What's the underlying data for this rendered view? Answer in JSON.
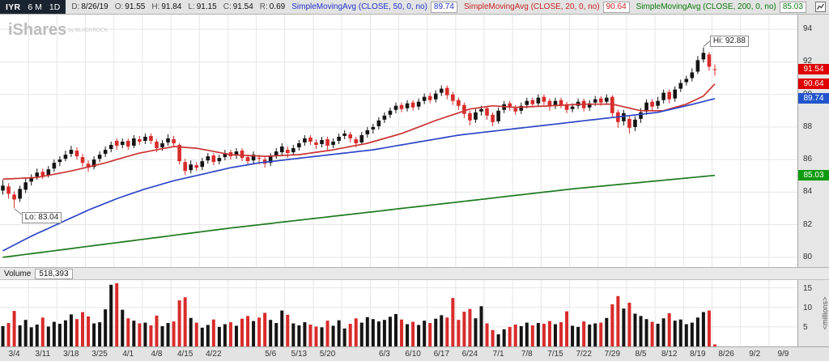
{
  "header": {
    "symbol_box": {
      "symbol": "IYR",
      "period": "6 M",
      "timeframe": "1D"
    },
    "quote_fields": [
      {
        "label": "D:",
        "value": "8/26/19"
      },
      {
        "label": "O:",
        "value": "91.55"
      },
      {
        "label": "H:",
        "value": "91.84"
      },
      {
        "label": "L:",
        "value": "91.15"
      },
      {
        "label": "C:",
        "value": "91.54"
      },
      {
        "label": "R:",
        "value": "0.69"
      }
    ],
    "indicators": [
      {
        "label": "SimpleMovingAvg (CLOSE, 50, 0, no)",
        "value": "89.74",
        "color": "#2233cc"
      },
      {
        "label": "SimpleMovingAvg (CLOSE, 20, 0, no)",
        "value": "90.64",
        "color": "#cc2222"
      },
      {
        "label": "SimpleMovingAvg (CLOSE, 200, 0, no)",
        "value": "85.03",
        "color": "#0b7a0b"
      }
    ]
  },
  "watermark": {
    "title": "iShares",
    "subtitle": "by BLACKROCK"
  },
  "annotations": {
    "high": {
      "text": "Hi: 92.88",
      "index": 123,
      "price": 92.88
    },
    "low": {
      "text": "Lo: 83.04",
      "index": 2,
      "price": 83.04
    }
  },
  "price_axis": {
    "ticks": [
      94,
      92,
      90,
      88,
      86,
      84,
      82,
      80
    ],
    "tags": [
      {
        "text": "91.54",
        "price": 91.54,
        "bg": "#e00000"
      },
      {
        "text": "90.64",
        "price": 90.64,
        "bg": "#e00000"
      },
      {
        "text": "89.74",
        "price": 89.74,
        "bg": "#2255cc"
      },
      {
        "text": "85.03",
        "price": 85.03,
        "bg": "#0f9b0f"
      }
    ]
  },
  "volume_pane": {
    "label": "Volume",
    "value": "518,393",
    "ticks": [
      15,
      10,
      5
    ],
    "axis_unit": "<millions>"
  },
  "chart_data": {
    "type": "candlestick",
    "symbol": "IYR",
    "range": "6 M",
    "interval": "1D",
    "ylim": [
      79.4,
      94.9
    ],
    "volume_ylim": [
      0,
      17
    ],
    "slots": 140,
    "price_gridlines": [
      80,
      82,
      84,
      86,
      88,
      90,
      92,
      94
    ],
    "up_color": "#141414",
    "down_color": "#d92b2b",
    "x_labels": [
      {
        "t": "3/4",
        "i": 0
      },
      {
        "t": "3/11",
        "i": 5
      },
      {
        "t": "3/18",
        "i": 10
      },
      {
        "t": "3/25",
        "i": 15
      },
      {
        "t": "4/1",
        "i": 20
      },
      {
        "t": "4/8",
        "i": 25
      },
      {
        "t": "4/15",
        "i": 30
      },
      {
        "t": "4/22",
        "i": 35
      },
      {
        "t": "5/6",
        "i": 45
      },
      {
        "t": "5/13",
        "i": 50
      },
      {
        "t": "5/20",
        "i": 55
      },
      {
        "t": "6/3",
        "i": 65
      },
      {
        "t": "6/10",
        "i": 70
      },
      {
        "t": "6/17",
        "i": 75
      },
      {
        "t": "6/24",
        "i": 80
      },
      {
        "t": "7/1",
        "i": 85
      },
      {
        "t": "7/8",
        "i": 90
      },
      {
        "t": "7/15",
        "i": 95
      },
      {
        "t": "7/22",
        "i": 100
      },
      {
        "t": "7/29",
        "i": 105
      },
      {
        "t": "8/5",
        "i": 110
      },
      {
        "t": "8/12",
        "i": 115
      },
      {
        "t": "8/19",
        "i": 120
      },
      {
        "t": "8/26",
        "i": 125
      },
      {
        "t": "9/2",
        "i": 130
      },
      {
        "t": "9/9",
        "i": 135
      }
    ],
    "candles": [
      [
        84.1,
        84.75,
        83.85,
        84.4,
        5.2
      ],
      [
        84.35,
        84.55,
        83.6,
        83.9,
        6.0
      ],
      [
        83.85,
        84.05,
        83.04,
        83.55,
        9.1
      ],
      [
        83.6,
        84.4,
        83.4,
        84.2,
        5.4
      ],
      [
        84.15,
        84.85,
        83.95,
        84.6,
        6.8
      ],
      [
        84.65,
        85.1,
        84.4,
        84.9,
        4.9
      ],
      [
        84.95,
        85.45,
        84.75,
        85.2,
        5.6
      ],
      [
        85.25,
        85.45,
        84.8,
        85.0,
        7.4
      ],
      [
        85.05,
        85.6,
        84.9,
        85.4,
        5.1
      ],
      [
        85.45,
        86.0,
        85.25,
        85.8,
        6.3
      ],
      [
        85.85,
        86.2,
        85.6,
        86.0,
        5.8
      ],
      [
        86.05,
        86.55,
        85.9,
        86.3,
        6.7
      ],
      [
        86.35,
        86.85,
        86.15,
        86.6,
        8.2
      ],
      [
        86.55,
        86.75,
        86.0,
        86.2,
        7.0
      ],
      [
        86.15,
        86.35,
        85.55,
        85.8,
        8.8
      ],
      [
        85.75,
        85.95,
        85.25,
        85.5,
        7.7
      ],
      [
        85.55,
        86.2,
        85.4,
        86.0,
        5.9
      ],
      [
        86.05,
        86.5,
        85.85,
        86.3,
        6.2
      ],
      [
        86.35,
        86.8,
        86.15,
        86.6,
        9.5
      ],
      [
        86.65,
        87.1,
        86.45,
        86.9,
        15.8
      ],
      [
        87.15,
        87.3,
        86.6,
        86.85,
        16.2
      ],
      [
        86.9,
        87.3,
        86.7,
        87.1,
        9.4
      ],
      [
        87.15,
        87.3,
        86.6,
        86.8,
        7.2
      ],
      [
        86.85,
        87.5,
        86.7,
        87.3,
        6.6
      ],
      [
        87.25,
        87.45,
        86.9,
        87.1,
        5.9
      ],
      [
        87.15,
        87.6,
        86.95,
        87.4,
        6.1
      ],
      [
        87.45,
        87.6,
        86.95,
        87.15,
        5.4
      ],
      [
        87.1,
        87.25,
        86.45,
        86.7,
        7.9
      ],
      [
        86.75,
        87.2,
        86.55,
        87.0,
        5.2
      ],
      [
        87.05,
        87.55,
        86.85,
        87.3,
        6.0
      ],
      [
        87.25,
        87.45,
        86.8,
        87.0,
        6.4
      ],
      [
        86.9,
        87.0,
        85.7,
        85.9,
        11.8
      ],
      [
        85.85,
        86.05,
        85.05,
        85.3,
        12.6
      ],
      [
        85.35,
        85.95,
        85.15,
        85.7,
        7.3
      ],
      [
        85.65,
        85.85,
        85.3,
        85.5,
        6.1
      ],
      [
        85.55,
        86.1,
        85.35,
        85.9,
        4.8
      ],
      [
        85.95,
        86.4,
        85.75,
        86.2,
        5.5
      ],
      [
        86.25,
        86.4,
        85.65,
        85.85,
        6.9
      ],
      [
        85.9,
        86.3,
        85.7,
        86.1,
        5.0
      ],
      [
        86.15,
        86.6,
        85.95,
        86.4,
        5.7
      ],
      [
        86.45,
        86.6,
        86.0,
        86.2,
        6.2
      ],
      [
        86.25,
        86.7,
        86.05,
        86.5,
        5.3
      ],
      [
        86.55,
        86.7,
        85.9,
        86.1,
        7.1
      ],
      [
        86.15,
        86.3,
        85.65,
        85.9,
        7.8
      ],
      [
        85.95,
        86.5,
        85.75,
        86.3,
        6.5
      ],
      [
        86.1,
        86.3,
        85.7,
        86.05,
        7.4
      ],
      [
        86.0,
        86.15,
        85.5,
        85.75,
        8.6
      ],
      [
        85.8,
        86.4,
        85.6,
        86.2,
        6.8
      ],
      [
        86.25,
        86.7,
        86.05,
        86.5,
        6.0
      ],
      [
        86.45,
        87.0,
        86.25,
        86.8,
        9.2
      ],
      [
        86.6,
        86.8,
        86.1,
        86.4,
        8.1
      ],
      [
        86.45,
        86.9,
        86.25,
        86.7,
        5.9
      ],
      [
        86.75,
        87.2,
        86.55,
        87.0,
        5.4
      ],
      [
        87.05,
        87.5,
        86.85,
        87.3,
        6.2
      ],
      [
        87.35,
        87.5,
        86.9,
        87.1,
        5.6
      ],
      [
        87.05,
        87.25,
        86.65,
        86.9,
        5.1
      ],
      [
        86.95,
        87.4,
        86.75,
        87.2,
        4.9
      ],
      [
        87.25,
        87.4,
        86.6,
        86.85,
        6.6
      ],
      [
        86.9,
        87.3,
        86.7,
        87.1,
        5.3
      ],
      [
        87.15,
        87.6,
        86.95,
        87.4,
        6.7
      ],
      [
        87.45,
        87.8,
        87.25,
        87.6,
        4.6
      ],
      [
        87.55,
        87.7,
        87.05,
        87.3,
        5.8
      ],
      [
        87.25,
        87.4,
        86.75,
        87.0,
        7.2
      ],
      [
        87.05,
        87.7,
        86.9,
        87.5,
        6.1
      ],
      [
        87.55,
        88.0,
        87.35,
        87.8,
        7.5
      ],
      [
        87.85,
        88.2,
        87.6,
        88.0,
        7.0
      ],
      [
        88.05,
        88.6,
        87.85,
        88.4,
        6.4
      ],
      [
        88.45,
        88.9,
        88.25,
        88.7,
        6.8
      ],
      [
        88.75,
        89.2,
        88.55,
        89.0,
        7.6
      ],
      [
        89.05,
        89.5,
        88.85,
        89.3,
        8.3
      ],
      [
        89.35,
        89.5,
        88.9,
        89.1,
        6.9
      ],
      [
        89.15,
        89.65,
        88.95,
        89.45,
        5.7
      ],
      [
        89.5,
        89.65,
        89.0,
        89.2,
        6.3
      ],
      [
        89.25,
        89.75,
        89.05,
        89.55,
        5.5
      ],
      [
        89.6,
        90.05,
        89.4,
        89.85,
        6.6
      ],
      [
        89.9,
        90.1,
        89.45,
        89.65,
        6.0
      ],
      [
        89.7,
        90.25,
        89.5,
        90.05,
        7.1
      ],
      [
        90.1,
        90.55,
        89.9,
        90.35,
        8.0
      ],
      [
        90.4,
        90.55,
        89.7,
        89.95,
        7.4
      ],
      [
        90.0,
        90.15,
        89.35,
        89.6,
        12.4
      ],
      [
        89.65,
        89.8,
        89.05,
        89.3,
        6.8
      ],
      [
        89.35,
        89.5,
        88.55,
        88.8,
        8.9
      ],
      [
        88.85,
        89.0,
        88.1,
        88.4,
        9.6
      ],
      [
        88.45,
        89.1,
        88.25,
        88.9,
        7.2
      ],
      [
        88.95,
        89.3,
        88.7,
        89.1,
        10.3
      ],
      [
        89.15,
        89.3,
        88.45,
        88.7,
        5.9
      ],
      [
        88.75,
        88.9,
        88.05,
        88.3,
        4.2
      ],
      [
        88.35,
        89.2,
        88.2,
        89.0,
        3.1
      ],
      [
        89.05,
        89.6,
        88.85,
        89.4,
        4.4
      ],
      [
        89.45,
        89.6,
        89.0,
        89.2,
        5.0
      ],
      [
        89.15,
        89.35,
        88.75,
        88.95,
        5.6
      ],
      [
        89.0,
        89.5,
        88.8,
        89.3,
        5.2
      ],
      [
        89.35,
        89.8,
        89.15,
        89.6,
        6.1
      ],
      [
        89.65,
        89.8,
        89.2,
        89.4,
        5.4
      ],
      [
        89.45,
        90.0,
        89.25,
        89.8,
        6.0
      ],
      [
        89.85,
        90.0,
        89.35,
        89.55,
        5.8
      ],
      [
        89.6,
        89.75,
        89.0,
        89.25,
        6.5
      ],
      [
        89.3,
        89.8,
        89.1,
        89.6,
        5.7
      ],
      [
        89.65,
        89.8,
        89.15,
        89.35,
        6.2
      ],
      [
        89.4,
        89.55,
        88.85,
        89.05,
        9.0
      ],
      [
        89.1,
        89.45,
        88.9,
        89.25,
        5.3
      ],
      [
        89.3,
        89.75,
        89.1,
        89.55,
        5.0
      ],
      [
        89.6,
        89.75,
        88.95,
        89.15,
        6.4
      ],
      [
        89.2,
        89.65,
        89.0,
        89.45,
        5.6
      ],
      [
        89.5,
        89.9,
        89.3,
        89.7,
        5.9
      ],
      [
        89.75,
        89.9,
        89.3,
        89.5,
        6.1
      ],
      [
        89.55,
        90.0,
        89.35,
        89.8,
        7.3
      ],
      [
        89.85,
        89.95,
        88.6,
        88.85,
        10.8
      ],
      [
        88.9,
        89.05,
        87.95,
        88.3,
        12.9
      ],
      [
        88.35,
        89.05,
        88.1,
        88.85,
        9.7
      ],
      [
        88.5,
        88.65,
        87.6,
        87.95,
        11.2
      ],
      [
        88.0,
        88.65,
        87.75,
        88.45,
        8.4
      ],
      [
        88.5,
        89.15,
        88.25,
        88.9,
        7.8
      ],
      [
        88.95,
        89.7,
        88.75,
        89.5,
        7.0
      ],
      [
        89.55,
        89.7,
        89.0,
        89.25,
        6.3
      ],
      [
        89.3,
        89.85,
        89.1,
        89.6,
        5.8
      ],
      [
        89.65,
        90.3,
        89.45,
        90.1,
        7.2
      ],
      [
        90.15,
        90.3,
        89.45,
        89.7,
        8.5
      ],
      [
        89.75,
        90.5,
        89.55,
        90.3,
        6.6
      ],
      [
        90.35,
        90.9,
        90.15,
        90.7,
        6.9
      ],
      [
        90.75,
        91.15,
        90.55,
        90.95,
        5.7
      ],
      [
        91.0,
        91.6,
        90.8,
        91.35,
        6.1
      ],
      [
        91.4,
        92.35,
        91.25,
        92.1,
        7.4
      ],
      [
        92.15,
        92.88,
        91.95,
        92.55,
        8.8
      ],
      [
        92.45,
        92.6,
        91.45,
        91.7,
        9.2
      ],
      [
        91.55,
        91.84,
        91.15,
        91.54,
        0.52
      ]
    ],
    "sma": [
      {
        "name": "SMA20",
        "period": 20,
        "color": "#cc3333",
        "points": [
          [
            0,
            84.8
          ],
          [
            6,
            84.9
          ],
          [
            12,
            85.3
          ],
          [
            18,
            85.8
          ],
          [
            24,
            86.4
          ],
          [
            30,
            86.8
          ],
          [
            34,
            86.7
          ],
          [
            40,
            86.3
          ],
          [
            46,
            86.2
          ],
          [
            52,
            86.3
          ],
          [
            58,
            86.6
          ],
          [
            64,
            87.0
          ],
          [
            70,
            87.6
          ],
          [
            76,
            88.4
          ],
          [
            82,
            89.1
          ],
          [
            86,
            89.3
          ],
          [
            90,
            89.2
          ],
          [
            96,
            89.3
          ],
          [
            102,
            89.4
          ],
          [
            107,
            89.4
          ],
          [
            112,
            89.0
          ],
          [
            116,
            89.0
          ],
          [
            120,
            89.4
          ],
          [
            123,
            89.9
          ],
          [
            125,
            90.64
          ]
        ]
      },
      {
        "name": "SMA50",
        "period": 50,
        "color": "#2d46c8",
        "points": [
          [
            0,
            80.4
          ],
          [
            5,
            81.3
          ],
          [
            10,
            82.1
          ],
          [
            15,
            82.9
          ],
          [
            20,
            83.6
          ],
          [
            25,
            84.2
          ],
          [
            30,
            84.7
          ],
          [
            35,
            85.1
          ],
          [
            40,
            85.5
          ],
          [
            45,
            85.8
          ],
          [
            50,
            86.0
          ],
          [
            55,
            86.2
          ],
          [
            60,
            86.4
          ],
          [
            65,
            86.6
          ],
          [
            70,
            86.9
          ],
          [
            75,
            87.2
          ],
          [
            80,
            87.5
          ],
          [
            85,
            87.7
          ],
          [
            90,
            87.9
          ],
          [
            95,
            88.1
          ],
          [
            100,
            88.3
          ],
          [
            105,
            88.5
          ],
          [
            110,
            88.7
          ],
          [
            115,
            88.9
          ],
          [
            120,
            89.3
          ],
          [
            125,
            89.74
          ]
        ]
      },
      {
        "name": "SMA200",
        "period": 200,
        "color": "#1d7a1d",
        "points": [
          [
            0,
            80.0
          ],
          [
            20,
            80.9
          ],
          [
            40,
            81.8
          ],
          [
            60,
            82.6
          ],
          [
            80,
            83.4
          ],
          [
            100,
            84.2
          ],
          [
            125,
            85.03
          ]
        ]
      }
    ]
  }
}
